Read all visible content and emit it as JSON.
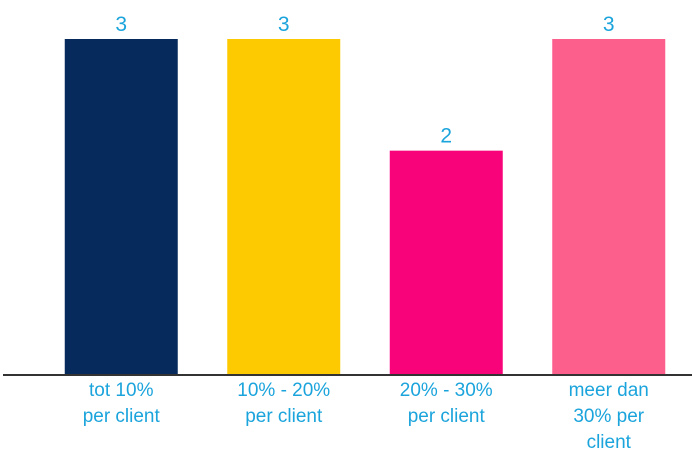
{
  "chart_data": {
    "type": "bar",
    "categories": [
      [
        "tot 10%",
        "per client"
      ],
      [
        "10% - 20%",
        "per client"
      ],
      [
        "20% - 30%",
        "per client"
      ],
      [
        "meer dan",
        "30% per",
        "client"
      ]
    ],
    "values": [
      3,
      3,
      2,
      3
    ],
    "colors": [
      "#062a5c",
      "#fdc900",
      "#f8037a",
      "#fd5f8c"
    ],
    "label_color": "#1ba4dc",
    "axis_color": "#333333",
    "ylim": [
      0,
      3
    ],
    "grid": false,
    "legend": false
  }
}
